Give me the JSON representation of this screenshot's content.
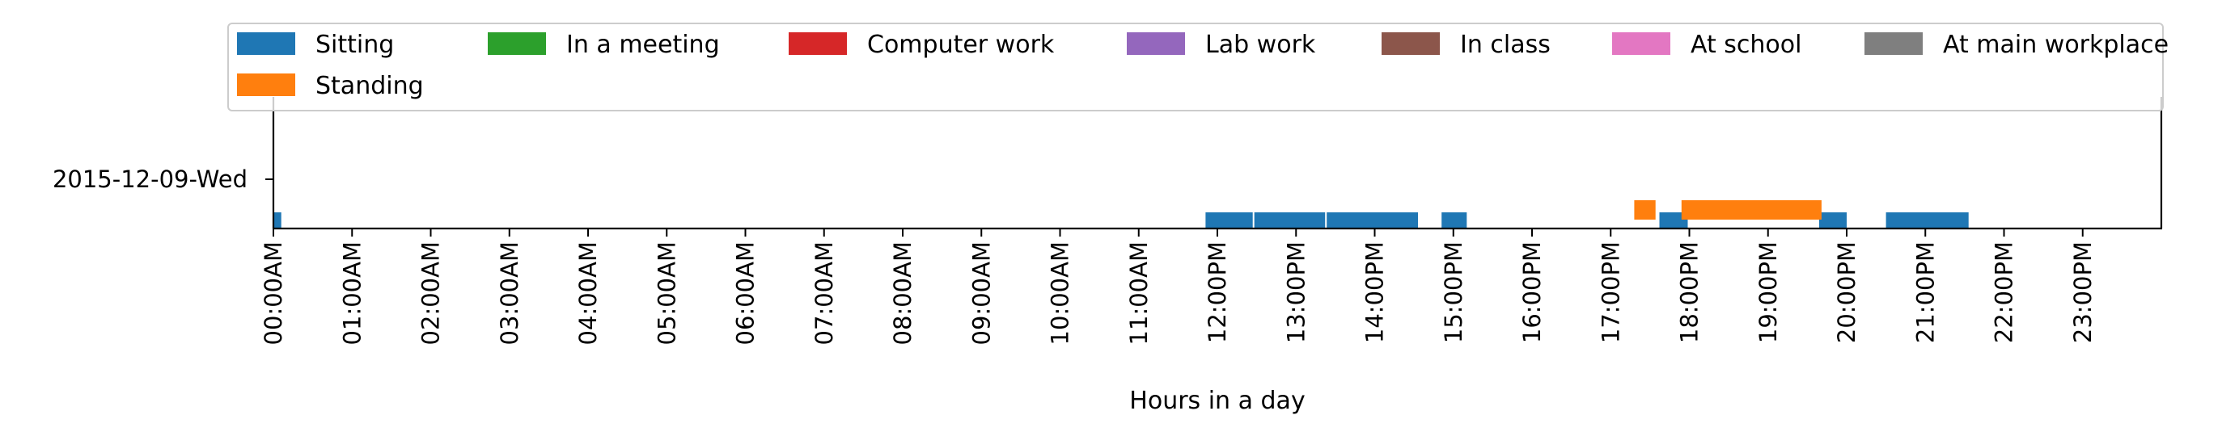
{
  "chart_data": {
    "type": "bar",
    "orientation": "horizontal-timeline",
    "xlabel": "Hours in a day",
    "xlim": [
      0,
      24
    ],
    "x_ticks": [
      {
        "hour": 0,
        "label": "00:00AM"
      },
      {
        "hour": 1,
        "label": "01:00AM"
      },
      {
        "hour": 2,
        "label": "02:00AM"
      },
      {
        "hour": 3,
        "label": "03:00AM"
      },
      {
        "hour": 4,
        "label": "04:00AM"
      },
      {
        "hour": 5,
        "label": "05:00AM"
      },
      {
        "hour": 6,
        "label": "06:00AM"
      },
      {
        "hour": 7,
        "label": "07:00AM"
      },
      {
        "hour": 8,
        "label": "08:00AM"
      },
      {
        "hour": 9,
        "label": "09:00AM"
      },
      {
        "hour": 10,
        "label": "10:00AM"
      },
      {
        "hour": 11,
        "label": "11:00AM"
      },
      {
        "hour": 12,
        "label": "12:00PM"
      },
      {
        "hour": 13,
        "label": "13:00PM"
      },
      {
        "hour": 14,
        "label": "14:00PM"
      },
      {
        "hour": 15,
        "label": "15:00PM"
      },
      {
        "hour": 16,
        "label": "16:00PM"
      },
      {
        "hour": 17,
        "label": "17:00PM"
      },
      {
        "hour": 18,
        "label": "18:00PM"
      },
      {
        "hour": 19,
        "label": "19:00PM"
      },
      {
        "hour": 20,
        "label": "20:00PM"
      },
      {
        "hour": 21,
        "label": "21:00PM"
      },
      {
        "hour": 22,
        "label": "22:00PM"
      },
      {
        "hour": 23,
        "label": "23:00PM"
      }
    ],
    "rows": [
      {
        "label": "2015-12-09-Wed"
      }
    ],
    "legend_position": "top",
    "series": [
      {
        "name": "Sitting",
        "color": "#1f77b4",
        "level": 0,
        "intervals": [
          [
            0.0,
            0.1
          ],
          [
            11.85,
            12.45
          ],
          [
            12.47,
            13.37
          ],
          [
            13.39,
            14.55
          ],
          [
            14.85,
            15.17
          ],
          [
            17.62,
            17.98
          ],
          [
            19.65,
            20.0
          ],
          [
            20.5,
            21.55
          ]
        ]
      },
      {
        "name": "Standing",
        "color": "#ff7f0e",
        "level": 1,
        "intervals": [
          [
            17.3,
            17.57
          ],
          [
            17.9,
            19.68
          ]
        ]
      },
      {
        "name": "In a meeting",
        "color": "#2ca02c",
        "intervals": []
      },
      {
        "name": "Computer work",
        "color": "#d62728",
        "intervals": []
      },
      {
        "name": "Lab work",
        "color": "#9467bd",
        "intervals": []
      },
      {
        "name": "In class",
        "color": "#8c564b",
        "intervals": []
      },
      {
        "name": "At school",
        "color": "#e377c2",
        "intervals": []
      },
      {
        "name": "At main workplace",
        "color": "#7f7f7f",
        "intervals": []
      }
    ]
  }
}
